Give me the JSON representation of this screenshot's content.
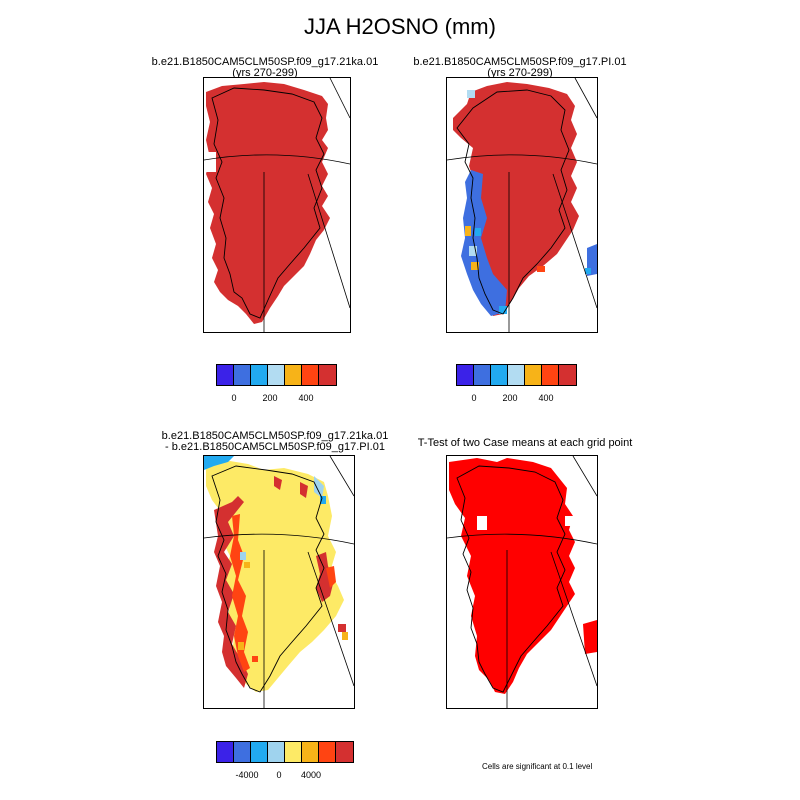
{
  "title": "JJA H2OSNO (mm)",
  "colors": {
    "scale": [
      "#3b22e8",
      "#3e6fe0",
      "#22aaf0",
      "#b2dcf2",
      "#f7b318",
      "#ff4412",
      "#d43030"
    ],
    "diff_scale": [
      "#3b22e8",
      "#3e6fe0",
      "#22aaf0",
      "#9fd3ee",
      "#fdea66",
      "#f7b318",
      "#ff4412",
      "#d43030"
    ],
    "significant": "#ff0000",
    "land_red": "#d43030",
    "diff_yellow": "#fdea66"
  },
  "chart_data": [
    {
      "type": "heatmap",
      "panel": "top-left",
      "title_line1": "b.e21.B1850CAM5CLM50SP.f09_g17.21ka.01",
      "title_line2": "(yrs 270-299)",
      "colorbar_ticks": [
        "0",
        "200",
        "400"
      ]
    },
    {
      "type": "heatmap",
      "panel": "top-right",
      "title_line1": "b.e21.B1850CAM5CLM50SP.f09_g17.PI.01",
      "title_line2": "(yrs 270-299)",
      "colorbar_ticks": [
        "0",
        "200",
        "400"
      ]
    },
    {
      "type": "heatmap",
      "panel": "bottom-left",
      "title_line1": "b.e21.B1850CAM5CLM50SP.f09_g17.21ka.01",
      "title_line2": "- b.e21.B1850CAM5CLM50SP.f09_g17.PI.01",
      "colorbar_ticks": [
        "-4000",
        "0",
        "4000"
      ]
    },
    {
      "type": "heatmap",
      "panel": "bottom-right",
      "title_line1": "T-Test of two Case means at each grid point",
      "footnote": "Cells are significant at 0.1 level"
    }
  ]
}
